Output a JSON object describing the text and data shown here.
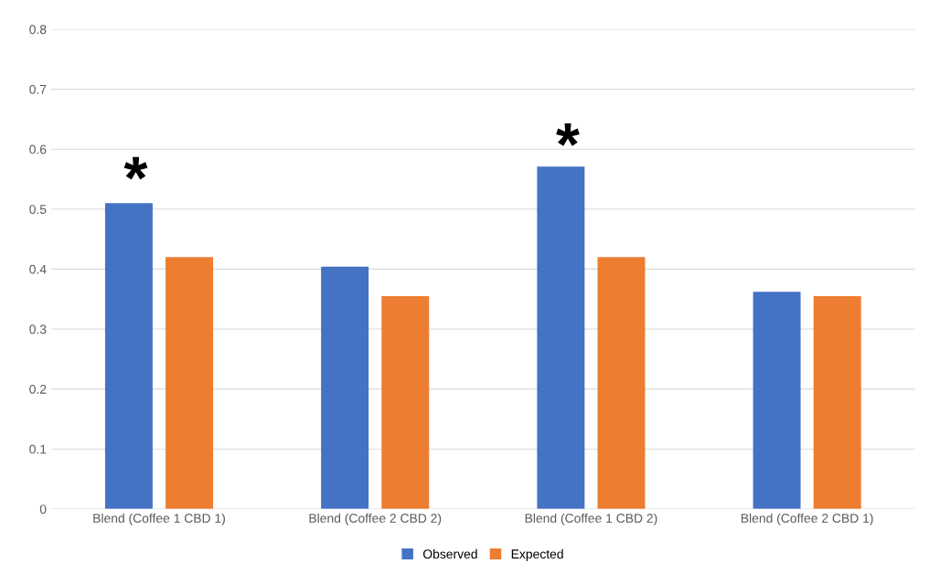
{
  "chart_data": {
    "type": "bar",
    "categories": [
      "Blend (Coffee 1 CBD 1)",
      "Blend (Coffee 2 CBD 2)",
      "Blend (Coffee 1 CBD 2)",
      "Blend (Coffee 2 CBD 1)"
    ],
    "series": [
      {
        "name": "Observed",
        "color": "#4472c4",
        "values": [
          0.51,
          0.404,
          0.571,
          0.362
        ]
      },
      {
        "name": "Expected",
        "color": "#ed7d31",
        "values": [
          0.42,
          0.355,
          0.42,
          0.355
        ]
      }
    ],
    "ylim": [
      0,
      0.8
    ],
    "yticks": [
      0,
      0.1,
      0.2,
      0.3,
      0.4,
      0.5,
      0.6,
      0.7,
      0.8
    ],
    "grid": "y",
    "legend": "bottom",
    "annotations": [
      "*",
      "*"
    ]
  }
}
